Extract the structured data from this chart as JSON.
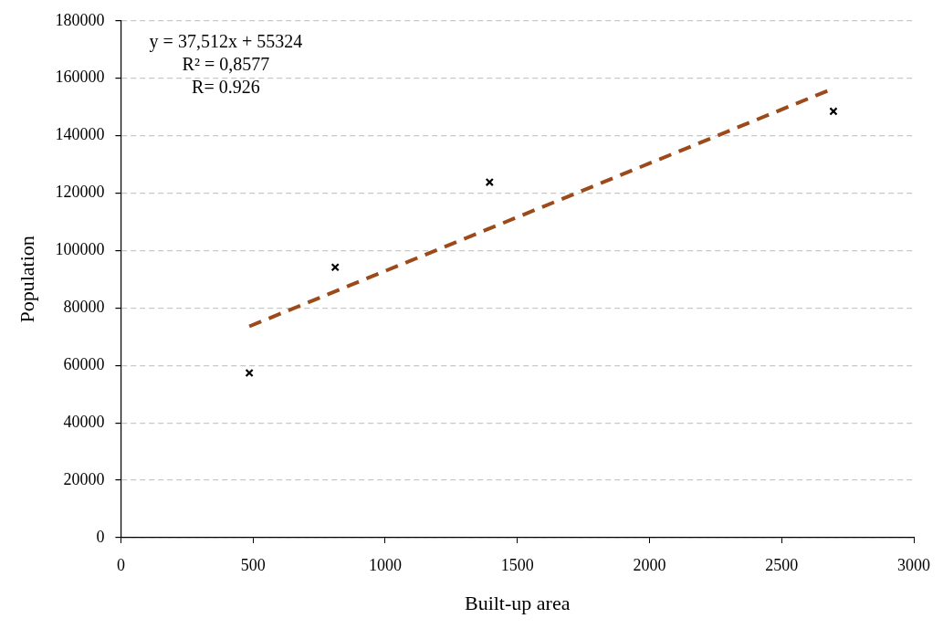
{
  "chart_data": {
    "type": "scatter",
    "xlabel": "Built-up area",
    "ylabel": "Population",
    "annotations": [
      "y = 37,512x + 55324",
      "R² = 0,8577",
      "R= 0.926"
    ],
    "series": [
      {
        "color": "#000000",
        "marker": "cross",
        "x": [
          486,
          811,
          1395,
          2696
        ],
        "values": [
          57400,
          94200,
          123800,
          148500
        ]
      },
      {
        "type": "line",
        "color": "#9c4a1a",
        "marker": "none",
        "line_style": "dashed",
        "x": [
          486,
          2673
        ],
        "values": [
          73600,
          155600
        ]
      }
    ],
    "xlim": [
      0,
      3000
    ],
    "xticks": [
      0,
      500,
      1000,
      1500,
      2000,
      2500,
      3000
    ],
    "ylim": [
      0,
      180000
    ],
    "yticks": [
      0,
      20000,
      40000,
      60000,
      80000,
      100000,
      120000,
      140000,
      160000,
      180000
    ],
    "grid": "y",
    "legend": false
  }
}
